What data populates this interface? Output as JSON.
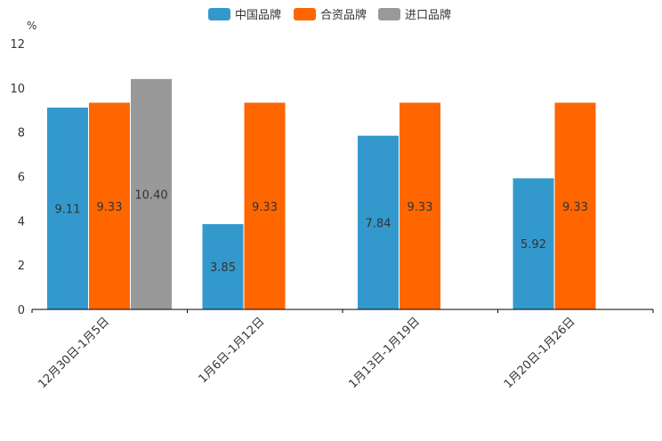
{
  "chart_data": {
    "type": "bar",
    "y_unit": "%",
    "ylim": [
      0,
      12
    ],
    "yticks": [
      0,
      2,
      4,
      6,
      8,
      10,
      12
    ],
    "categories": [
      "12月30日-1月5日",
      "1月6日-1月12日",
      "1月13日-1月19日",
      "1月20日-1月26日"
    ],
    "series": [
      {
        "name": "中国品牌",
        "color": "#3399cc",
        "values": [
          9.11,
          3.85,
          7.84,
          5.92
        ],
        "labels": [
          "9.11",
          "3.85",
          "7.84",
          "5.92"
        ]
      },
      {
        "name": "合资品牌",
        "color": "#ff6600",
        "values": [
          9.33,
          9.33,
          9.33,
          9.33
        ],
        "labels": [
          "9.33",
          "9.33",
          "9.33",
          "9.33"
        ]
      },
      {
        "name": "进口品牌",
        "color": "#999999",
        "values": [
          10.4,
          null,
          null,
          null
        ],
        "labels": [
          "10.40",
          null,
          null,
          null
        ]
      }
    ],
    "legend_position": "top-center"
  }
}
